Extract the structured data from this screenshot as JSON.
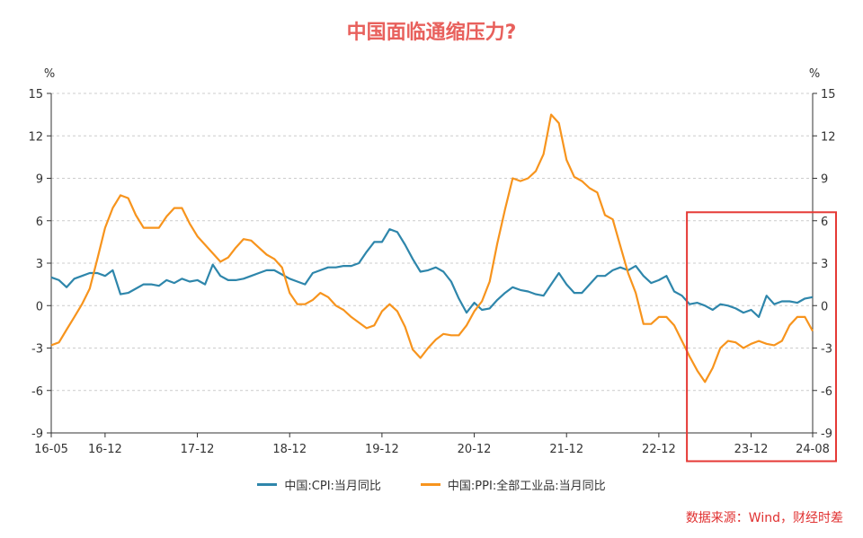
{
  "title": "中国面临通缩压力?",
  "source": "数据来源：Wind，财经时差",
  "colors": {
    "cpi": "#2e86ab",
    "ppi": "#f7941d",
    "highlight": "#e53935",
    "axis": "#333333",
    "grid": "#cccccc",
    "title": "#e8605c"
  },
  "chart_data": {
    "type": "line",
    "unit_left": "%",
    "unit_right": "%",
    "ylim": [
      -9,
      15
    ],
    "yticks": [
      -9,
      -6,
      -3,
      0,
      3,
      6,
      9,
      12,
      15
    ],
    "xticks": [
      {
        "label": "16-05",
        "index": 0
      },
      {
        "label": "16-12",
        "index": 7
      },
      {
        "label": "17-12",
        "index": 19
      },
      {
        "label": "18-12",
        "index": 31
      },
      {
        "label": "19-12",
        "index": 43
      },
      {
        "label": "20-12",
        "index": 55
      },
      {
        "label": "21-12",
        "index": 67
      },
      {
        "label": "22-12",
        "index": 79
      },
      {
        "label": "23-12",
        "index": 91
      },
      {
        "label": "24-08",
        "index": 99
      }
    ],
    "grid": "horizontal",
    "legend_placement": "bottom",
    "highlight_range": {
      "from_index": 83,
      "to_index": 99,
      "y_from": -11,
      "y_to": 6.6
    },
    "series": [
      {
        "name": "中国:CPI:当月同比",
        "values": [
          2.0,
          1.8,
          1.3,
          1.9,
          2.1,
          2.3,
          2.3,
          2.1,
          2.5,
          0.8,
          0.9,
          1.2,
          1.5,
          1.5,
          1.4,
          1.8,
          1.6,
          1.9,
          1.7,
          1.8,
          1.5,
          2.9,
          2.1,
          1.8,
          1.8,
          1.9,
          2.1,
          2.3,
          2.5,
          2.5,
          2.2,
          1.9,
          1.7,
          1.5,
          2.3,
          2.5,
          2.7,
          2.7,
          2.8,
          2.8,
          3.0,
          3.8,
          4.5,
          4.5,
          5.4,
          5.2,
          4.3,
          3.3,
          2.4,
          2.5,
          2.7,
          2.4,
          1.7,
          0.5,
          -0.5,
          0.2,
          -0.3,
          -0.2,
          0.4,
          0.9,
          1.3,
          1.1,
          1.0,
          0.8,
          0.7,
          1.5,
          2.3,
          1.5,
          0.9,
          0.9,
          1.5,
          2.1,
          2.1,
          2.5,
          2.7,
          2.5,
          2.8,
          2.1,
          1.6,
          1.8,
          2.1,
          1.0,
          0.7,
          0.1,
          0.2,
          0.0,
          -0.3,
          0.1,
          0.0,
          -0.2,
          -0.5,
          -0.3,
          -0.8,
          0.7,
          0.1,
          0.3,
          0.3,
          0.2,
          0.5,
          0.6
        ],
        "color": "#2e86ab"
      },
      {
        "name": "中国:PPI:全部工业品:当月同比",
        "values": [
          -2.8,
          -2.6,
          -1.7,
          -0.8,
          0.1,
          1.2,
          3.3,
          5.5,
          6.9,
          7.8,
          7.6,
          6.4,
          5.5,
          5.5,
          5.5,
          6.3,
          6.9,
          6.9,
          5.8,
          4.9,
          4.3,
          3.7,
          3.1,
          3.4,
          4.1,
          4.7,
          4.6,
          4.1,
          3.6,
          3.3,
          2.7,
          0.9,
          0.1,
          0.1,
          0.4,
          0.9,
          0.6,
          0.0,
          -0.3,
          -0.8,
          -1.2,
          -1.6,
          -1.4,
          -0.4,
          0.1,
          -0.4,
          -1.5,
          -3.1,
          -3.7,
          -3.0,
          -2.4,
          -2.0,
          -2.1,
          -2.1,
          -1.4,
          -0.4,
          0.3,
          1.7,
          4.4,
          6.8,
          9.0,
          8.8,
          9.0,
          9.5,
          10.7,
          13.5,
          12.9,
          10.3,
          9.1,
          8.8,
          8.3,
          8.0,
          6.4,
          6.1,
          4.2,
          2.3,
          0.9,
          -1.3,
          -1.3,
          -0.8,
          -0.8,
          -1.4,
          -2.5,
          -3.6,
          -4.6,
          -5.4,
          -4.4,
          -3.0,
          -2.5,
          -2.6,
          -3.0,
          -2.7,
          -2.5,
          -2.7,
          -2.8,
          -2.5,
          -1.4,
          -0.8,
          -0.8,
          -1.8
        ],
        "color": "#f7941d"
      }
    ]
  }
}
